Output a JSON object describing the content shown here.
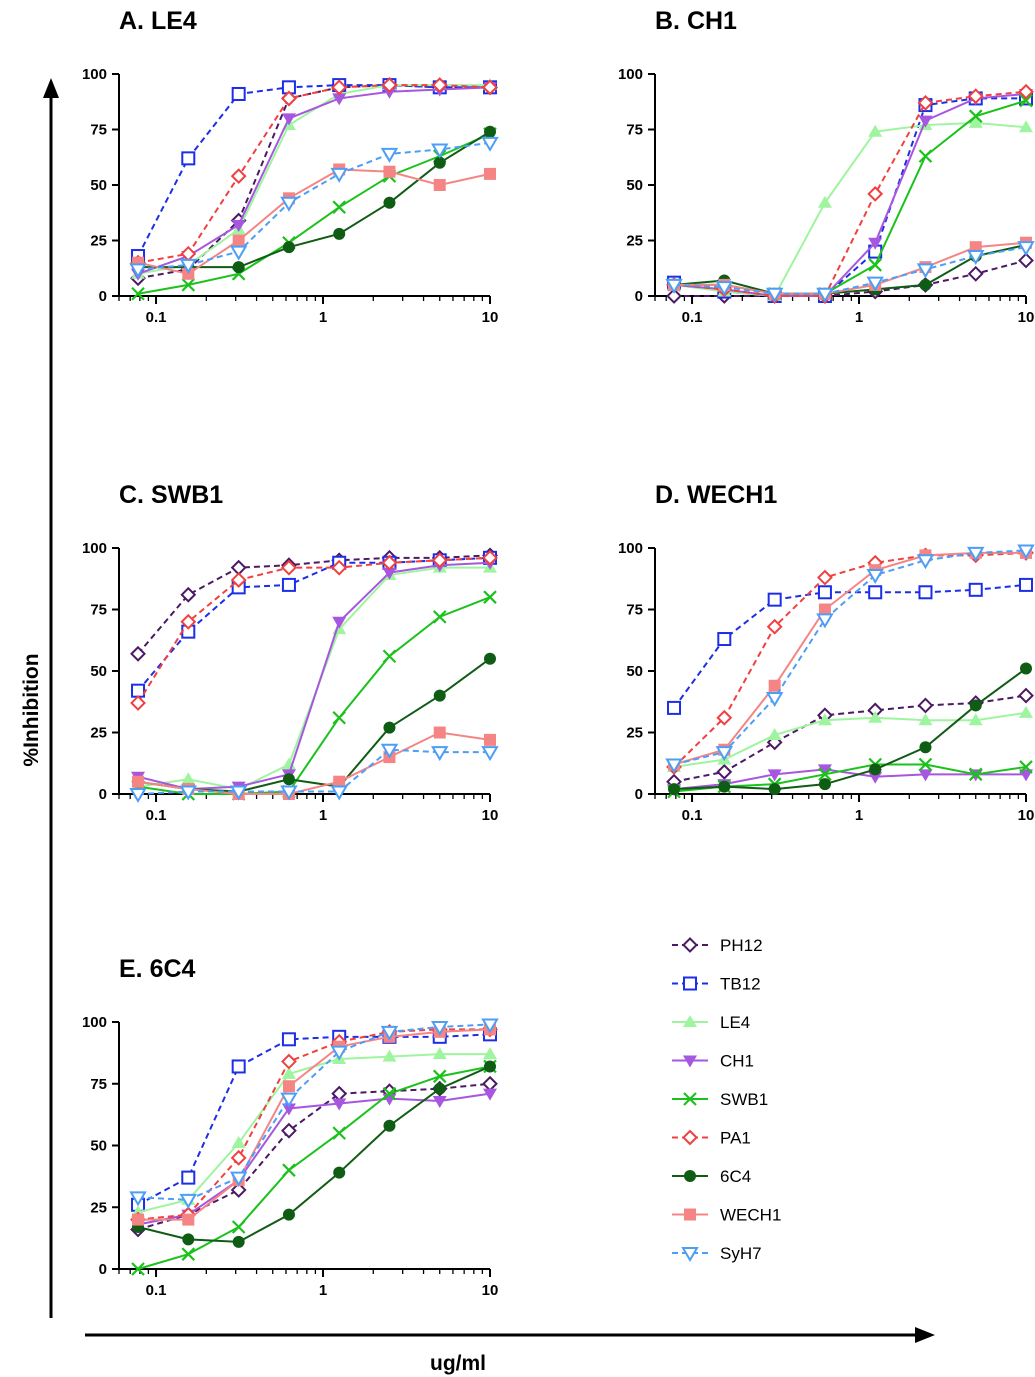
{
  "figure": {
    "ylabel": "%Inhibition",
    "xlabel": "ug/ml"
  },
  "legend": [
    {
      "name": "PH12",
      "color": "#4b1a63",
      "marker": "diamond-open",
      "dash": true
    },
    {
      "name": "TB12",
      "color": "#1c2ee8",
      "marker": "square-open",
      "dash": true
    },
    {
      "name": "LE4",
      "color": "#9ff59f",
      "marker": "triangle-up-filled",
      "dash": false
    },
    {
      "name": "CH1",
      "color": "#a756e0",
      "marker": "triangle-down-filled",
      "dash": false
    },
    {
      "name": "SWB1",
      "color": "#1cc21c",
      "marker": "x",
      "dash": false
    },
    {
      "name": "PA1",
      "color": "#f0403f",
      "marker": "diamond-open",
      "dash": true
    },
    {
      "name": "6C4",
      "color": "#0f5c14",
      "marker": "circle-filled",
      "dash": false
    },
    {
      "name": "WECH1",
      "color": "#f58585",
      "marker": "square-filled",
      "dash": false
    },
    {
      "name": "SyH7",
      "color": "#4d9ef5",
      "marker": "triangle-down-open",
      "dash": true
    }
  ],
  "chart_data": [
    {
      "title": "A.  LE4",
      "type": "line",
      "xscale": "log",
      "xlim": [
        0.06,
        10
      ],
      "ylim": [
        0,
        100
      ],
      "xticks": [
        "0.1",
        "1",
        "10"
      ],
      "yticks": [
        "0",
        "25",
        "50",
        "75",
        "100"
      ],
      "x": [
        0.078,
        0.156,
        0.3125,
        0.625,
        1.25,
        2.5,
        5,
        10
      ],
      "series": [
        {
          "name": "PH12",
          "values": [
            8,
            12,
            34,
            89,
            94,
            95,
            94,
            94
          ]
        },
        {
          "name": "TB12",
          "values": [
            18,
            62,
            91,
            94,
            95,
            95,
            94,
            94
          ]
        },
        {
          "name": "LE4",
          "values": [
            10,
            14,
            30,
            77,
            91,
            95,
            95,
            95
          ]
        },
        {
          "name": "CH1",
          "values": [
            10,
            18,
            32,
            80,
            89,
            92,
            93,
            94
          ]
        },
        {
          "name": "SWB1",
          "values": [
            1,
            5,
            10,
            24,
            40,
            54,
            63,
            73
          ]
        },
        {
          "name": "PA1",
          "values": [
            15,
            19,
            54,
            89,
            94,
            95,
            95,
            94
          ]
        },
        {
          "name": "6C4",
          "values": [
            13,
            13,
            13,
            22,
            28,
            42,
            60,
            74
          ]
        },
        {
          "name": "WECH1",
          "values": [
            15,
            10,
            25,
            44,
            57,
            56,
            50,
            55
          ]
        },
        {
          "name": "SyH7",
          "values": [
            12,
            14,
            20,
            42,
            55,
            64,
            66,
            69
          ]
        }
      ]
    },
    {
      "title": "B.  CH1",
      "type": "line",
      "xscale": "log",
      "xlim": [
        0.06,
        10
      ],
      "ylim": [
        0,
        100
      ],
      "xticks": [
        "0.1",
        "1",
        "10"
      ],
      "yticks": [
        "0",
        "25",
        "50",
        "75",
        "100"
      ],
      "x": [
        0.078,
        0.156,
        0.3125,
        0.625,
        1.25,
        2.5,
        5,
        10
      ],
      "series": [
        {
          "name": "PH12",
          "values": [
            0,
            0,
            0,
            0,
            2,
            5,
            10,
            16
          ]
        },
        {
          "name": "TB12",
          "values": [
            6,
            2,
            0,
            0,
            20,
            86,
            89,
            89
          ]
        },
        {
          "name": "LE4",
          "values": [
            5,
            2,
            0,
            42,
            74,
            77,
            78,
            76
          ]
        },
        {
          "name": "CH1",
          "values": [
            5,
            3,
            0,
            0,
            24,
            79,
            89,
            91
          ]
        },
        {
          "name": "SWB1",
          "values": [
            5,
            5,
            1,
            1,
            14,
            63,
            81,
            88
          ]
        },
        {
          "name": "PA1",
          "values": [
            5,
            3,
            0,
            0,
            46,
            87,
            90,
            92
          ]
        },
        {
          "name": "6C4",
          "values": [
            5,
            7,
            1,
            1,
            3,
            5,
            18,
            23
          ]
        },
        {
          "name": "WECH1",
          "values": [
            5,
            5,
            1,
            1,
            5,
            13,
            22,
            24
          ]
        },
        {
          "name": "SyH7",
          "values": [
            5,
            4,
            1,
            1,
            6,
            12,
            18,
            22
          ]
        }
      ]
    },
    {
      "title": "C.  SWB1",
      "type": "line",
      "xscale": "log",
      "xlim": [
        0.06,
        10
      ],
      "ylim": [
        0,
        100
      ],
      "xticks": [
        "0.1",
        "1",
        "10"
      ],
      "yticks": [
        "0",
        "25",
        "50",
        "75",
        "100"
      ],
      "x": [
        0.078,
        0.156,
        0.3125,
        0.625,
        1.25,
        2.5,
        5,
        10
      ],
      "series": [
        {
          "name": "PH12",
          "values": [
            57,
            81,
            92,
            93,
            95,
            96,
            96,
            97
          ]
        },
        {
          "name": "TB12",
          "values": [
            42,
            66,
            84,
            85,
            94,
            94,
            95,
            96
          ]
        },
        {
          "name": "LE4",
          "values": [
            3,
            6,
            2,
            12,
            67,
            89,
            92,
            92
          ]
        },
        {
          "name": "CH1",
          "values": [
            7,
            2,
            3,
            8,
            70,
            90,
            93,
            94
          ]
        },
        {
          "name": "SWB1",
          "values": [
            3,
            0,
            0,
            1,
            31,
            56,
            72,
            80
          ]
        },
        {
          "name": "PA1",
          "values": [
            37,
            70,
            87,
            92,
            92,
            94,
            95,
            96
          ]
        },
        {
          "name": "6C4",
          "values": [
            5,
            2,
            1,
            6,
            3,
            27,
            40,
            55
          ]
        },
        {
          "name": "WECH1",
          "values": [
            5,
            2,
            0,
            0,
            5,
            15,
            25,
            22
          ]
        },
        {
          "name": "SyH7",
          "values": [
            0,
            1,
            1,
            1,
            1,
            18,
            17,
            17
          ]
        }
      ]
    },
    {
      "title": "D.  WECH1",
      "type": "line",
      "xscale": "log",
      "xlim": [
        0.06,
        10
      ],
      "ylim": [
        0,
        100
      ],
      "xticks": [
        "0.1",
        "1",
        "10"
      ],
      "yticks": [
        "0",
        "25",
        "50",
        "75",
        "100"
      ],
      "x": [
        0.078,
        0.156,
        0.3125,
        0.625,
        1.25,
        2.5,
        5,
        10
      ],
      "series": [
        {
          "name": "PH12",
          "values": [
            5,
            9,
            21,
            32,
            34,
            36,
            37,
            40
          ]
        },
        {
          "name": "TB12",
          "values": [
            35,
            63,
            79,
            82,
            82,
            82,
            83,
            85
          ]
        },
        {
          "name": "LE4",
          "values": [
            11,
            14,
            24,
            30,
            31,
            30,
            30,
            33
          ]
        },
        {
          "name": "CH1",
          "values": [
            2,
            4,
            8,
            10,
            7,
            8,
            8,
            8
          ]
        },
        {
          "name": "SWB1",
          "values": [
            1,
            3,
            4,
            8,
            12,
            12,
            8,
            11
          ]
        },
        {
          "name": "PA1",
          "values": [
            11,
            31,
            68,
            88,
            94,
            97,
            97,
            98
          ]
        },
        {
          "name": "6C4",
          "values": [
            2,
            3,
            2,
            4,
            10,
            19,
            36,
            51
          ]
        },
        {
          "name": "WECH1",
          "values": [
            12,
            18,
            44,
            75,
            91,
            97,
            98,
            98
          ]
        },
        {
          "name": "SyH7",
          "values": [
            12,
            17,
            39,
            71,
            89,
            95,
            98,
            99
          ]
        }
      ]
    },
    {
      "title": "E.  6C4",
      "type": "line",
      "xscale": "log",
      "xlim": [
        0.06,
        10
      ],
      "ylim": [
        0,
        100
      ],
      "xticks": [
        "0.1",
        "1",
        "10"
      ],
      "yticks": [
        "0",
        "25",
        "50",
        "75",
        "100"
      ],
      "x": [
        0.078,
        0.156,
        0.3125,
        0.625,
        1.25,
        2.5,
        5,
        10
      ],
      "series": [
        {
          "name": "PH12",
          "values": [
            16,
            22,
            32,
            56,
            71,
            72,
            73,
            75
          ]
        },
        {
          "name": "TB12",
          "values": [
            26,
            37,
            82,
            93,
            94,
            94,
            94,
            95
          ]
        },
        {
          "name": "LE4",
          "values": [
            23,
            28,
            51,
            79,
            85,
            86,
            87,
            87
          ]
        },
        {
          "name": "CH1",
          "values": [
            18,
            22,
            36,
            65,
            67,
            69,
            68,
            71
          ]
        },
        {
          "name": "SWB1",
          "values": [
            0,
            6,
            17,
            40,
            55,
            71,
            78,
            82
          ]
        },
        {
          "name": "PA1",
          "values": [
            20,
            22,
            45,
            84,
            92,
            96,
            97,
            97
          ]
        },
        {
          "name": "6C4",
          "values": [
            17,
            12,
            11,
            22,
            39,
            58,
            73,
            82
          ]
        },
        {
          "name": "WECH1",
          "values": [
            20,
            20,
            36,
            74,
            90,
            94,
            96,
            97
          ]
        },
        {
          "name": "SyH7",
          "values": [
            29,
            28,
            37,
            69,
            88,
            96,
            98,
            99
          ]
        }
      ]
    }
  ]
}
